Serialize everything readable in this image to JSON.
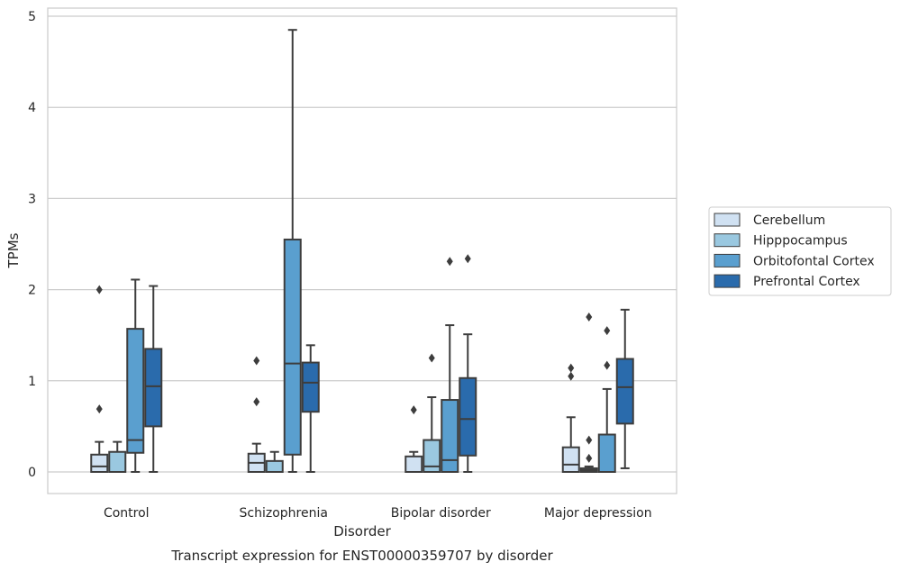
{
  "chart_data": {
    "type": "box",
    "title": "Transcript expression for ENST00000359707 by disorder",
    "xlabel": "Disorder",
    "ylabel": "TPMs",
    "ylim": [
      -0.23,
      5.1
    ],
    "yticks": [
      0,
      1,
      2,
      3,
      4,
      5
    ],
    "grid": true,
    "legend_position": "right",
    "categories": [
      "Control",
      "Schizophrenia",
      "Bipolar disorder",
      "Major depression"
    ],
    "series": [
      {
        "name": "Cerebellum",
        "color": "#d0e1f2",
        "boxes": [
          {
            "whislo": 0.0,
            "q1": 0.0,
            "med": 0.06,
            "q3": 0.19,
            "whishi": 0.33,
            "fliers": [
              0.69,
              2.0
            ]
          },
          {
            "whislo": 0.0,
            "q1": 0.0,
            "med": 0.1,
            "q3": 0.2,
            "whishi": 0.31,
            "fliers": [
              0.77,
              1.22
            ]
          },
          {
            "whislo": 0.0,
            "q1": 0.0,
            "med": 0.0,
            "q3": 0.17,
            "whishi": 0.22,
            "fliers": [
              0.68
            ]
          },
          {
            "whislo": 0.0,
            "q1": 0.0,
            "med": 0.08,
            "q3": 0.27,
            "whishi": 0.6,
            "fliers": [
              1.05,
              1.14
            ]
          }
        ]
      },
      {
        "name": "Hipppocampus",
        "color": "#9ac8e0",
        "boxes": [
          {
            "whislo": 0.0,
            "q1": 0.0,
            "med": 0.0,
            "q3": 0.22,
            "whishi": 0.33,
            "fliers": []
          },
          {
            "whislo": 0.0,
            "q1": 0.0,
            "med": 0.0,
            "q3": 0.12,
            "whishi": 0.22,
            "fliers": []
          },
          {
            "whislo": 0.0,
            "q1": 0.0,
            "med": 0.06,
            "q3": 0.35,
            "whishi": 0.82,
            "fliers": [
              1.25
            ]
          },
          {
            "whislo": 0.0,
            "q1": 0.0,
            "med": 0.02,
            "q3": 0.04,
            "whishi": 0.06,
            "fliers": [
              0.15,
              0.35,
              1.7
            ]
          }
        ]
      },
      {
        "name": "Orbitofontal Cortex",
        "color": "#5a9fcf",
        "boxes": [
          {
            "whislo": 0.0,
            "q1": 0.21,
            "med": 0.35,
            "q3": 1.57,
            "whishi": 2.11,
            "fliers": []
          },
          {
            "whislo": 0.0,
            "q1": 0.19,
            "med": 1.19,
            "q3": 2.55,
            "whishi": 4.85,
            "fliers": []
          },
          {
            "whislo": 0.0,
            "q1": 0.0,
            "med": 0.13,
            "q3": 0.79,
            "whishi": 1.61,
            "fliers": [
              2.31
            ]
          },
          {
            "whislo": 0.0,
            "q1": 0.0,
            "med": 0.0,
            "q3": 0.41,
            "whishi": 0.91,
            "fliers": [
              1.17,
              1.55
            ]
          }
        ]
      },
      {
        "name": "Prefrontal Cortex",
        "color": "#2a6bac",
        "boxes": [
          {
            "whislo": 0.0,
            "q1": 0.5,
            "med": 0.94,
            "q3": 1.35,
            "whishi": 2.04,
            "fliers": []
          },
          {
            "whislo": 0.0,
            "q1": 0.66,
            "med": 0.98,
            "q3": 1.2,
            "whishi": 1.39,
            "fliers": []
          },
          {
            "whislo": 0.0,
            "q1": 0.18,
            "med": 0.58,
            "q3": 1.03,
            "whishi": 1.51,
            "fliers": [
              2.34
            ]
          },
          {
            "whislo": 0.04,
            "q1": 0.53,
            "med": 0.93,
            "q3": 1.24,
            "whishi": 1.78,
            "fliers": []
          }
        ]
      }
    ]
  }
}
